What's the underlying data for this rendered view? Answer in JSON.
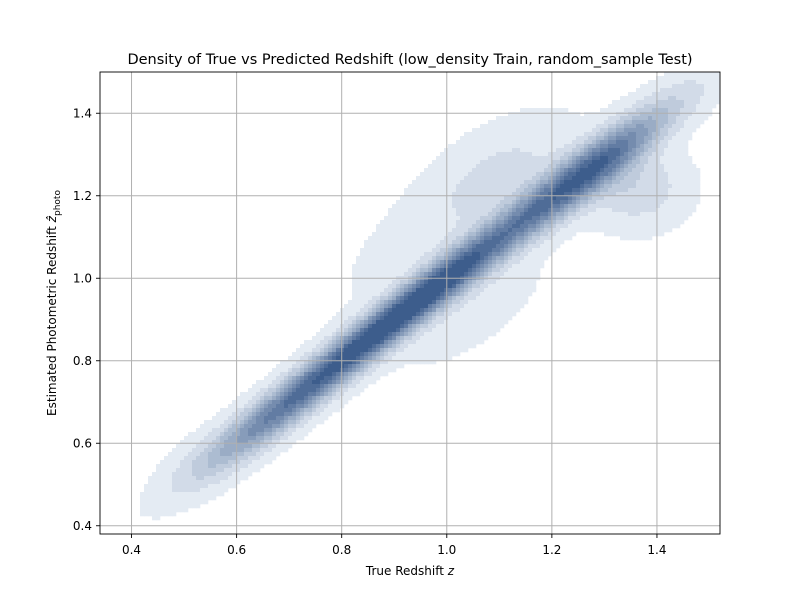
{
  "chart_data": {
    "type": "density_contour",
    "title": "Density of True vs Predicted Redshift (low_density Train, random_sample Test)",
    "xlabel": "True Redshift",
    "xlabel_symbol": "z",
    "ylabel": "Estimated Photometric Redshift",
    "ylabel_symbol": "ẑ",
    "ylabel_subscript": "photo",
    "xlim": [
      0.34,
      1.52
    ],
    "ylim": [
      0.38,
      1.5
    ],
    "x_ticks": [
      0.4,
      0.6,
      0.8,
      1.0,
      1.2,
      1.4
    ],
    "y_ticks": [
      0.4,
      0.6,
      0.8,
      1.0,
      1.2,
      1.4
    ],
    "x_tick_labels": [
      "0.4",
      "0.6",
      "0.8",
      "1.0",
      "1.2",
      "1.4"
    ],
    "y_tick_labels": [
      "0.4",
      "0.6",
      "0.8",
      "1.0",
      "1.2",
      "1.4"
    ],
    "grid": true,
    "colormap": "Blues",
    "contour_levels": 10,
    "density_components": [
      {
        "x": 0.85,
        "y": 0.85,
        "sigma_major": 0.2,
        "sigma_minor": 0.028,
        "weight": 1.0
      },
      {
        "x": 0.66,
        "y": 0.655,
        "sigma_major": 0.1,
        "sigma_minor": 0.03,
        "weight": 0.3
      },
      {
        "x": 0.55,
        "y": 0.56,
        "sigma_major": 0.08,
        "sigma_minor": 0.035,
        "weight": 0.12
      },
      {
        "x": 1.02,
        "y": 1.02,
        "sigma_major": 0.12,
        "sigma_minor": 0.03,
        "weight": 0.45
      },
      {
        "x": 1.26,
        "y": 1.25,
        "sigma_major": 0.15,
        "sigma_minor": 0.032,
        "weight": 0.9
      },
      {
        "x": 1.36,
        "y": 1.22,
        "sigma_major": 0.06,
        "sigma_minor": 0.06,
        "weight": 0.18
      },
      {
        "x": 1.1,
        "y": 1.25,
        "sigma_major": 0.1,
        "sigma_minor": 0.06,
        "weight": 0.1
      },
      {
        "x": 1.0,
        "y": 1.15,
        "sigma_major": 0.18,
        "sigma_minor": 0.06,
        "weight": 0.05
      },
      {
        "x": 1.05,
        "y": 0.92,
        "sigma_major": 0.12,
        "sigma_minor": 0.05,
        "weight": 0.05
      }
    ],
    "colors": {
      "frame": "#000000",
      "grid": "#b0b0b0",
      "fill_low": "#f7fbff",
      "fill_high": "#08306b"
    }
  }
}
